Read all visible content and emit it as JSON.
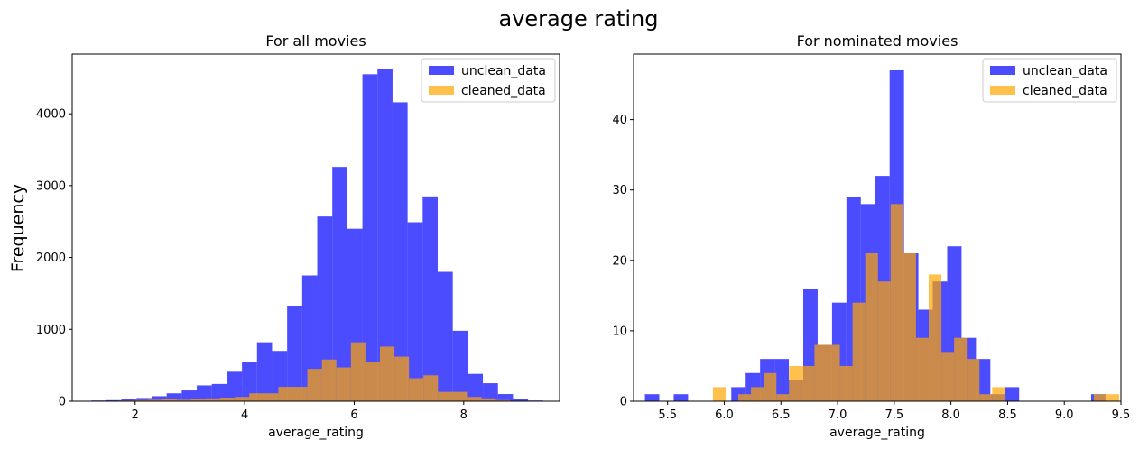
{
  "figure": {
    "suptitle": "average rating",
    "ylabel": "Frequency"
  },
  "colors": {
    "unclean": "#0000ff",
    "cleaned": "#ffa500",
    "unclean_alpha": 0.7,
    "cleaned_alpha": 0.7
  },
  "chart_data": [
    {
      "type": "bar",
      "title": "For all movies",
      "xlabel": "average_rating",
      "ylabel": "Frequency",
      "xlim": [
        0.85,
        9.75
      ],
      "ylim": [
        0,
        4830
      ],
      "xticks": [
        2,
        4,
        6,
        8
      ],
      "yticks": [
        0,
        1000,
        2000,
        3000,
        4000
      ],
      "legend": "top-right",
      "series": [
        {
          "name": "unclean_data",
          "bin_start": 1.2,
          "bin_width": 0.275,
          "values": [
            10,
            15,
            30,
            45,
            70,
            110,
            150,
            220,
            240,
            410,
            540,
            820,
            700,
            1330,
            1750,
            2570,
            3260,
            2400,
            4550,
            4620,
            4160,
            2490,
            2850,
            1800,
            980,
            380,
            250,
            100,
            30,
            10
          ]
        },
        {
          "name": "cleaned_data",
          "bin_start": 1.7,
          "bin_width": 0.265,
          "values": [
            10,
            15,
            20,
            25,
            20,
            30,
            40,
            50,
            60,
            110,
            110,
            200,
            200,
            450,
            580,
            470,
            820,
            550,
            760,
            620,
            320,
            360,
            130,
            130,
            60,
            40,
            15,
            5
          ]
        }
      ]
    },
    {
      "type": "bar",
      "title": "For nominated movies",
      "xlabel": "average_rating",
      "ylabel": "",
      "xlim": [
        5.2,
        9.5
      ],
      "ylim": [
        0,
        49.3
      ],
      "xticks": [
        5.5,
        6.0,
        6.5,
        7.0,
        7.5,
        8.0,
        8.5,
        9.0,
        9.5
      ],
      "yticks": [
        0,
        10,
        20,
        30,
        40
      ],
      "legend": "top-right",
      "series": [
        {
          "name": "unclean_data",
          "bin_start": 5.3,
          "bin_width": 0.127,
          "values": [
            1,
            0,
            1,
            0,
            0,
            0,
            2,
            4,
            6,
            6,
            3,
            16,
            8,
            14,
            29,
            28,
            32,
            47,
            21,
            13,
            17,
            22,
            9,
            6,
            1,
            2,
            0,
            0,
            0,
            0,
            0,
            1
          ]
        },
        {
          "name": "cleaned_data",
          "bin_start": 5.9,
          "bin_width": 0.112,
          "values": [
            2,
            0,
            1,
            2,
            4,
            1,
            5,
            5,
            8,
            8,
            5,
            14,
            21,
            17,
            28,
            21,
            9,
            18,
            7,
            9,
            6,
            1,
            2,
            0,
            0,
            0,
            0,
            0,
            0,
            0,
            1,
            1
          ]
        }
      ]
    }
  ]
}
